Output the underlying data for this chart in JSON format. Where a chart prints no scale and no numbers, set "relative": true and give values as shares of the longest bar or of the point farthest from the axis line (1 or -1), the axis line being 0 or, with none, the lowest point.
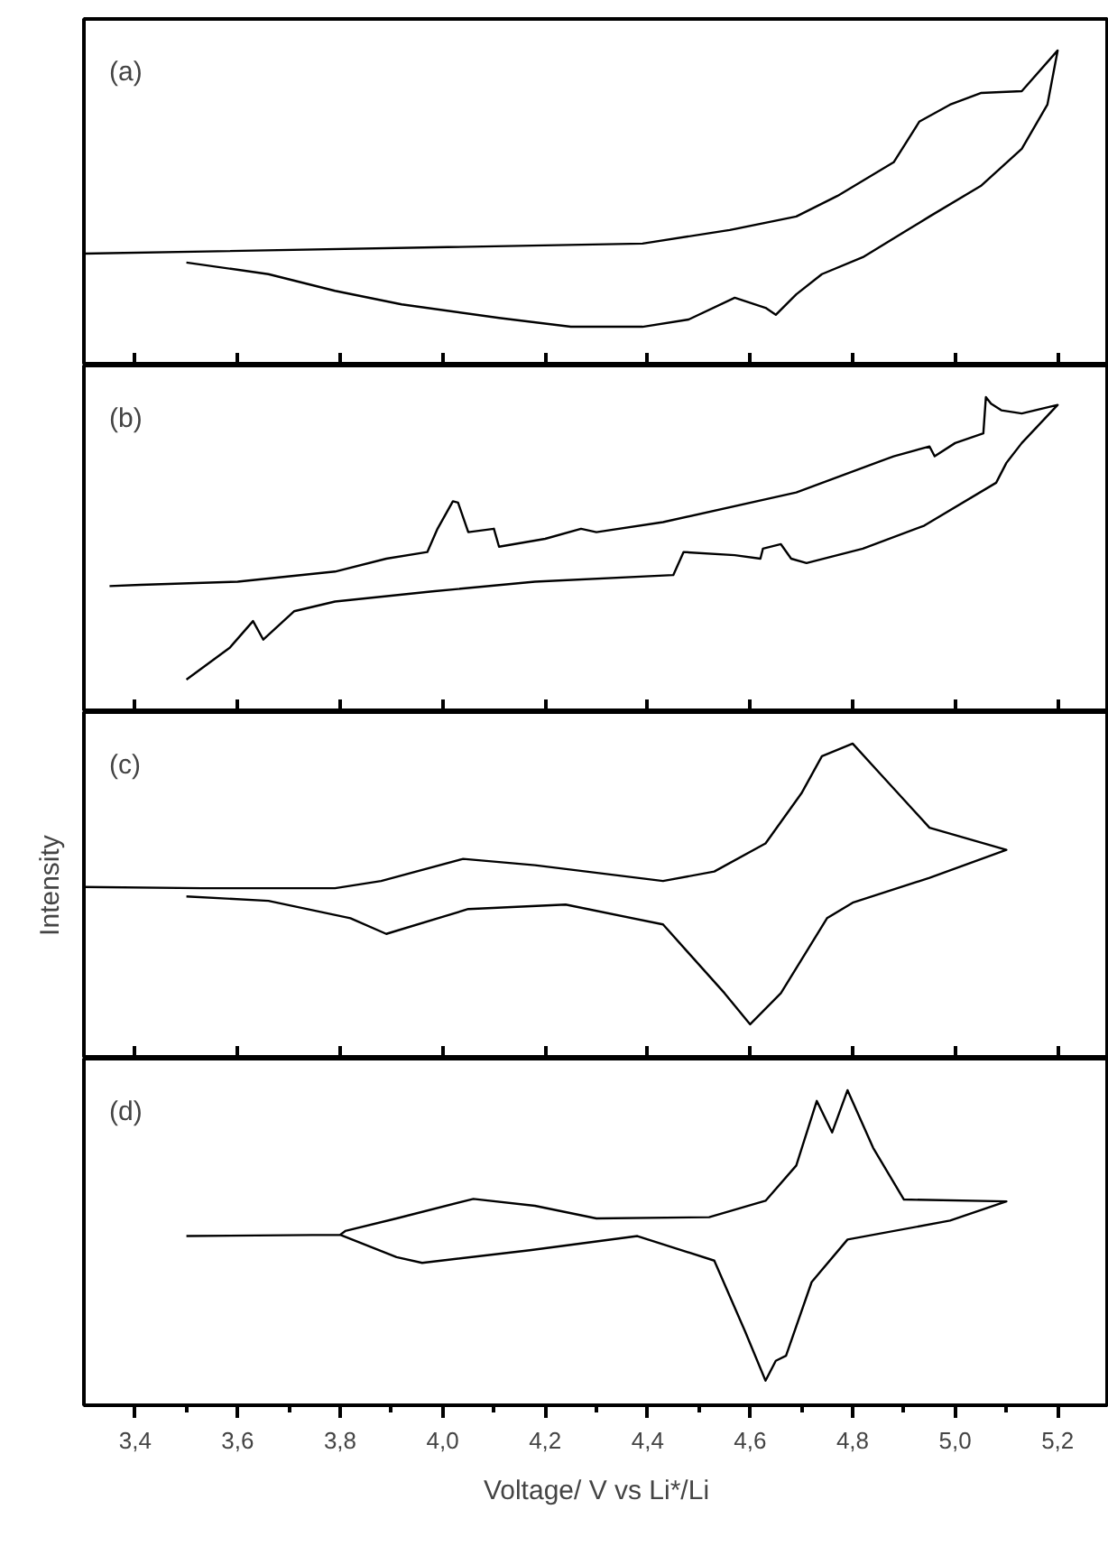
{
  "chart_data": [
    {
      "type": "line",
      "annotations": [
        "(a)"
      ],
      "relative": true,
      "xlim": [
        3.3,
        5.3
      ],
      "tick_labels": false,
      "xticks": [
        {
          "value": 3.4,
          "label": null
        },
        {
          "value": 3.6,
          "label": null
        },
        {
          "value": 3.8,
          "label": null
        },
        {
          "value": 4.0,
          "label": null
        },
        {
          "value": 4.2,
          "label": null
        },
        {
          "value": 4.4,
          "label": null
        },
        {
          "value": 4.6,
          "label": null
        },
        {
          "value": 4.8,
          "label": null
        },
        {
          "value": 5.0,
          "label": null
        },
        {
          "value": 5.2,
          "label": null
        }
      ],
      "series": [
        {
          "color": "#000000",
          "x": [
            3.3,
            4.39,
            4.56,
            4.69,
            4.77,
            4.88,
            4.93,
            4.99,
            5.05,
            5.13,
            5.2,
            5.18,
            5.13,
            5.05,
            4.95,
            4.82,
            4.74,
            4.69,
            4.65,
            4.63,
            4.57,
            4.48,
            4.39,
            4.25,
            4.11,
            3.92,
            3.79,
            3.66,
            3.5
          ],
          "values": [
            0.355,
            0.387,
            0.43,
            0.473,
            0.538,
            0.645,
            0.774,
            0.828,
            0.865,
            0.871,
            1.0,
            0.828,
            0.688,
            0.57,
            0.473,
            0.344,
            0.29,
            0.226,
            0.161,
            0.183,
            0.215,
            0.146,
            0.123,
            0.123,
            0.151,
            0.194,
            0.237,
            0.29,
            0.327
          ]
        }
      ]
    },
    {
      "type": "line",
      "annotations": [
        "(b)"
      ],
      "relative": true,
      "xlim": [
        3.3,
        5.3
      ],
      "tick_labels": false,
      "xticks": [
        {
          "value": 3.4,
          "label": null
        },
        {
          "value": 3.6,
          "label": null
        },
        {
          "value": 3.8,
          "label": null
        },
        {
          "value": 4.0,
          "label": null
        },
        {
          "value": 4.2,
          "label": null
        },
        {
          "value": 4.4,
          "label": null
        },
        {
          "value": 4.6,
          "label": null
        },
        {
          "value": 4.8,
          "label": null
        },
        {
          "value": 5.0,
          "label": null
        },
        {
          "value": 5.2,
          "label": null
        }
      ],
      "series": [
        {
          "color": "#000000",
          "x": [
            3.5,
            3.585,
            3.63,
            3.65,
            3.71,
            3.79,
            3.98,
            4.18,
            4.45,
            4.47,
            4.57,
            4.62,
            4.625,
            4.66,
            4.68,
            4.71,
            4.82,
            4.94,
            5.08,
            5.1,
            5.13,
            5.2,
            5.13,
            5.09,
            5.07,
            5.06,
            5.055,
            5.0,
            4.96,
            4.95,
            4.88,
            4.69,
            4.43,
            4.3,
            4.27,
            4.2,
            4.11,
            4.1,
            4.05,
            4.03,
            4.02,
            3.99,
            3.97,
            3.89,
            3.79,
            3.6,
            3.41,
            3.35
          ],
          "values": [
            0.103,
            0.205,
            0.289,
            0.23,
            0.32,
            0.351,
            0.383,
            0.414,
            0.435,
            0.508,
            0.498,
            0.487,
            0.519,
            0.533,
            0.487,
            0.473,
            0.519,
            0.592,
            0.728,
            0.791,
            0.854,
            0.975,
            0.948,
            0.958,
            0.979,
            1.0,
            0.885,
            0.854,
            0.812,
            0.843,
            0.812,
            0.697,
            0.603,
            0.571,
            0.582,
            0.55,
            0.525,
            0.582,
            0.571,
            0.665,
            0.669,
            0.582,
            0.508,
            0.487,
            0.446,
            0.414,
            0.404,
            0.4
          ]
        }
      ]
    },
    {
      "type": "line",
      "annotations": [
        "(c)"
      ],
      "ylabel": "Intensity",
      "relative": true,
      "xlim": [
        3.3,
        5.3
      ],
      "tick_labels": false,
      "xticks": [
        {
          "value": 3.4,
          "label": null
        },
        {
          "value": 3.6,
          "label": null
        },
        {
          "value": 3.8,
          "label": null
        },
        {
          "value": 4.0,
          "label": null
        },
        {
          "value": 4.2,
          "label": null
        },
        {
          "value": 4.4,
          "label": null
        },
        {
          "value": 4.6,
          "label": null
        },
        {
          "value": 4.8,
          "label": null
        },
        {
          "value": 5.0,
          "label": null
        },
        {
          "value": 5.2,
          "label": null
        }
      ],
      "series": [
        {
          "color": "#000000",
          "x": [
            3.3,
            3.53,
            3.79,
            3.88,
            4.04,
            4.18,
            4.43,
            4.53,
            4.63,
            4.7,
            4.74,
            4.8,
            4.85,
            4.95,
            5.1,
            4.95,
            4.8,
            4.75,
            4.66,
            4.6,
            4.55,
            4.43,
            4.24,
            4.05,
            3.89,
            3.82,
            3.66,
            3.5
          ],
          "values": [
            0.545,
            0.541,
            0.541,
            0.564,
            0.634,
            0.614,
            0.564,
            0.594,
            0.683,
            0.842,
            0.96,
            1.0,
            0.911,
            0.733,
            0.663,
            0.574,
            0.495,
            0.446,
            0.208,
            0.109,
            0.208,
            0.426,
            0.489,
            0.475,
            0.396,
            0.446,
            0.501,
            0.515
          ]
        }
      ]
    },
    {
      "type": "line",
      "annotations": [
        "(d)"
      ],
      "xlabel": "Voltage/ V vs Li*/Li",
      "relative": true,
      "xlim": [
        3.3,
        5.3
      ],
      "tick_labels": "x",
      "xticks": [
        {
          "value": 3.4,
          "label": "3,4"
        },
        {
          "value": 3.5,
          "label": null
        },
        {
          "value": 3.6,
          "label": "3,6"
        },
        {
          "value": 3.7,
          "label": null
        },
        {
          "value": 3.8,
          "label": "3,8"
        },
        {
          "value": 3.9,
          "label": null
        },
        {
          "value": 4.0,
          "label": "4,0"
        },
        {
          "value": 4.1,
          "label": null
        },
        {
          "value": 4.2,
          "label": "4,2"
        },
        {
          "value": 4.3,
          "label": null
        },
        {
          "value": 4.4,
          "label": "4,4"
        },
        {
          "value": 4.5,
          "label": null
        },
        {
          "value": 4.6,
          "label": "4,6"
        },
        {
          "value": 4.7,
          "label": null
        },
        {
          "value": 4.8,
          "label": "4,8"
        },
        {
          "value": 4.9,
          "label": null
        },
        {
          "value": 5.0,
          "label": "5,0"
        },
        {
          "value": 5.1,
          "label": null
        },
        {
          "value": 5.2,
          "label": "5,2"
        }
      ],
      "series": [
        {
          "color": "#000000",
          "x": [
            3.5,
            3.8,
            3.81,
            3.91,
            4.06,
            4.18,
            4.3,
            4.52,
            4.63,
            4.69,
            4.73,
            4.76,
            4.79,
            4.84,
            4.9,
            5.1,
            4.99,
            4.79,
            4.72,
            4.67,
            4.65,
            4.63,
            4.59,
            4.53,
            4.38,
            4.17,
            3.96,
            3.91,
            3.8
          ],
          "values": [
            0.537,
            0.541,
            0.553,
            0.593,
            0.655,
            0.633,
            0.593,
            0.597,
            0.649,
            0.761,
            0.966,
            0.866,
            1.0,
            0.817,
            0.653,
            0.647,
            0.586,
            0.526,
            0.391,
            0.157,
            0.141,
            0.078,
            0.235,
            0.459,
            0.537,
            0.492,
            0.452,
            0.47,
            0.541
          ]
        }
      ]
    }
  ]
}
